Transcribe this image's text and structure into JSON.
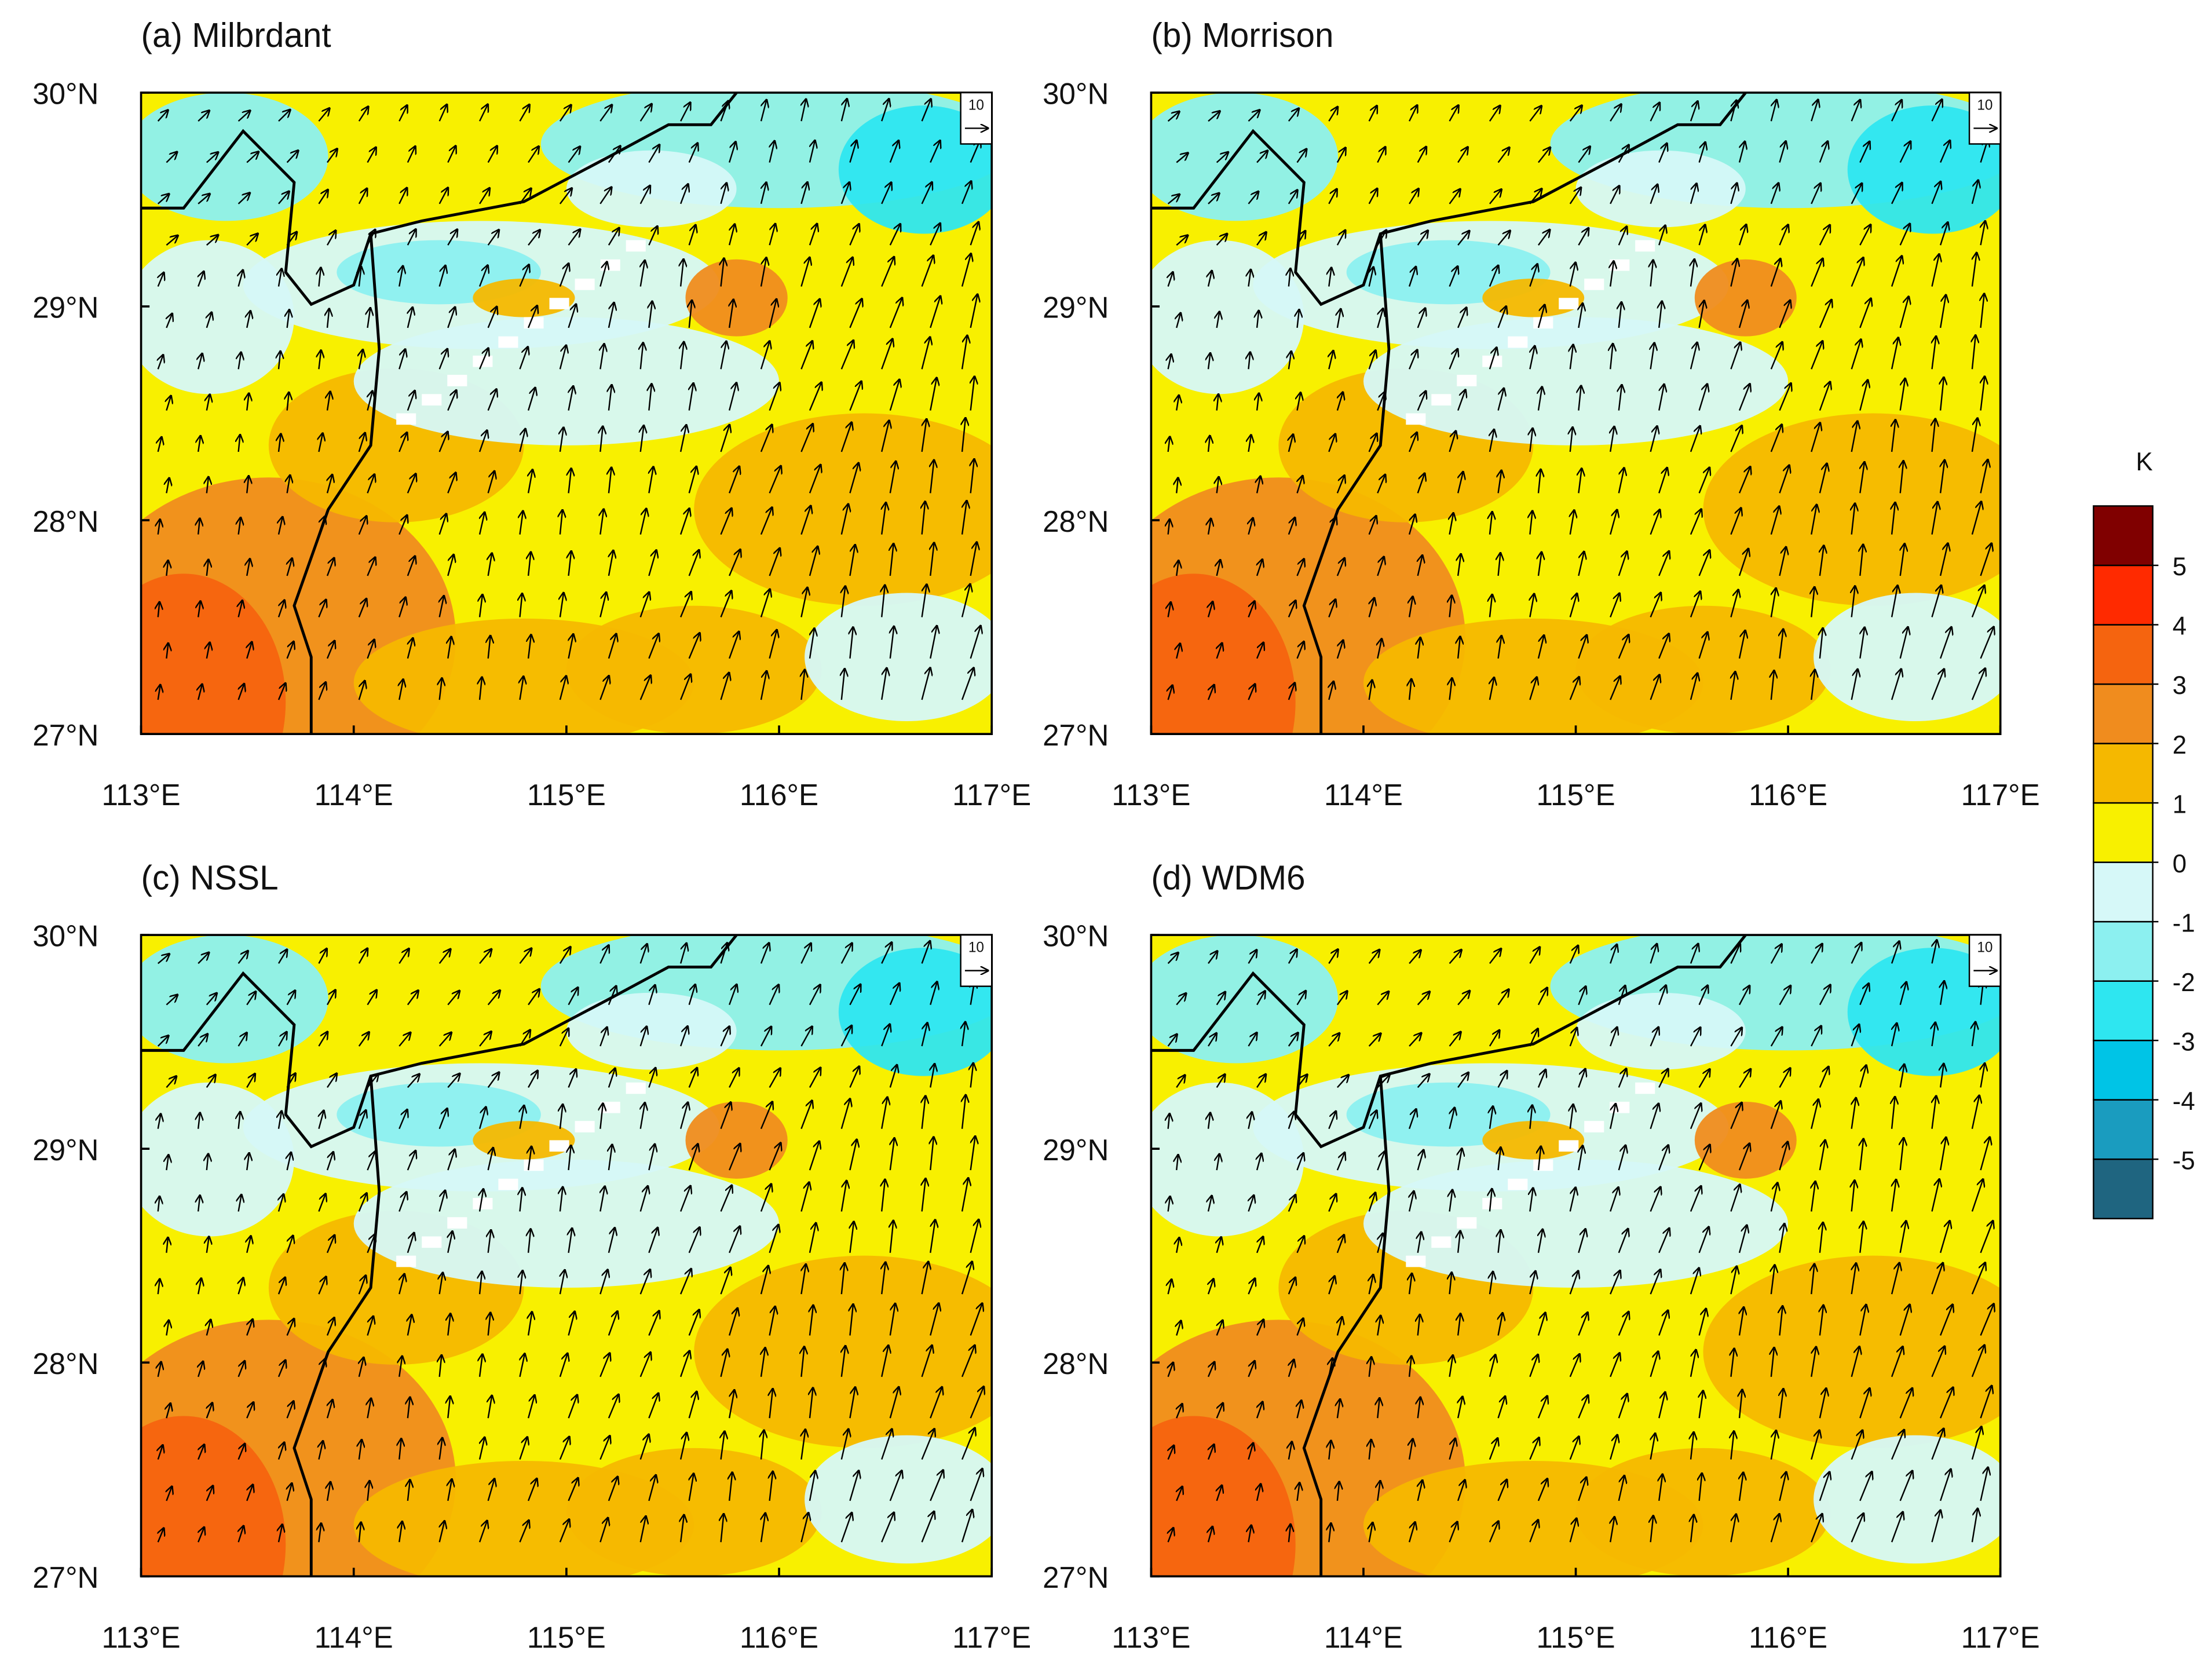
{
  "chart_data": [
    {
      "type": "map",
      "title": "(a) Milbrdant",
      "xlim": [
        113,
        117
      ],
      "ylim": [
        27,
        30
      ],
      "xticks": [
        {
          "value": 113,
          "label": "113°E"
        },
        {
          "value": 114,
          "label": "114°E"
        },
        {
          "value": 115,
          "label": "115°E"
        },
        {
          "value": 116,
          "label": "116°E"
        },
        {
          "value": 117,
          "label": "117°E"
        }
      ],
      "yticks": [
        {
          "value": 27,
          "label": "27°N"
        },
        {
          "value": 28,
          "label": "28°N"
        },
        {
          "value": 29,
          "label": "29°N"
        },
        {
          "value": 30,
          "label": "30°N"
        }
      ],
      "vector_reference": "10"
    },
    {
      "type": "map",
      "title": "(b) Morrison",
      "xlim": [
        113,
        117
      ],
      "ylim": [
        27,
        30
      ],
      "xticks": [
        {
          "value": 113,
          "label": "113°E"
        },
        {
          "value": 114,
          "label": "114°E"
        },
        {
          "value": 115,
          "label": "115°E"
        },
        {
          "value": 116,
          "label": "116°E"
        },
        {
          "value": 117,
          "label": "117°E"
        }
      ],
      "yticks": [
        {
          "value": 27,
          "label": "27°N"
        },
        {
          "value": 28,
          "label": "28°N"
        },
        {
          "value": 29,
          "label": "29°N"
        },
        {
          "value": 30,
          "label": "30°N"
        }
      ],
      "vector_reference": "10"
    },
    {
      "type": "map",
      "title": "(c) NSSL",
      "xlim": [
        113,
        117
      ],
      "ylim": [
        27,
        30
      ],
      "xticks": [
        {
          "value": 113,
          "label": "113°E"
        },
        {
          "value": 114,
          "label": "114°E"
        },
        {
          "value": 115,
          "label": "115°E"
        },
        {
          "value": 116,
          "label": "116°E"
        },
        {
          "value": 117,
          "label": "117°E"
        }
      ],
      "yticks": [
        {
          "value": 27,
          "label": "27°N"
        },
        {
          "value": 28,
          "label": "28°N"
        },
        {
          "value": 29,
          "label": "29°N"
        },
        {
          "value": 30,
          "label": "30°N"
        }
      ],
      "vector_reference": "10"
    },
    {
      "type": "map",
      "title": "(d) WDM6",
      "xlim": [
        113,
        117
      ],
      "ylim": [
        27,
        30
      ],
      "xticks": [
        {
          "value": 113,
          "label": "113°E"
        },
        {
          "value": 114,
          "label": "114°E"
        },
        {
          "value": 115,
          "label": "115°E"
        },
        {
          "value": 116,
          "label": "116°E"
        },
        {
          "value": 117,
          "label": "117°E"
        }
      ],
      "yticks": [
        {
          "value": 27,
          "label": "27°N"
        },
        {
          "value": 28,
          "label": "28°N"
        },
        {
          "value": 29,
          "label": "29°N"
        },
        {
          "value": 30,
          "label": "30°N"
        }
      ],
      "vector_reference": "10"
    }
  ],
  "colorbar": {
    "label": "K",
    "ticks": [
      -5,
      -4,
      -3,
      -2,
      -1,
      0,
      1,
      2,
      3,
      4,
      5
    ],
    "colors": [
      "#1f6580",
      "#1a9cbf",
      "#00c4e6",
      "#2ee6f0",
      "#8cf0f0",
      "#d6f8f8",
      "#f8f000",
      "#f5b800",
      "#f08c1e",
      "#f5640f",
      "#ff2a00",
      "#800000"
    ]
  }
}
